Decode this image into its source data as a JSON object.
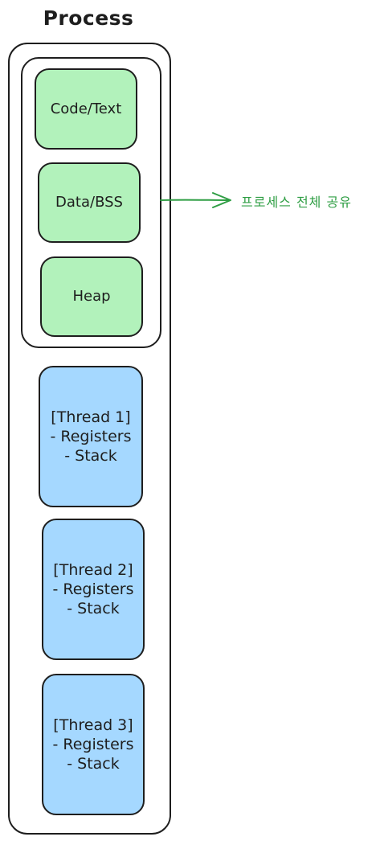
{
  "title": "Process",
  "shared_segments": [
    {
      "label": "Code/Text"
    },
    {
      "label": "Data/BSS"
    },
    {
      "label": "Heap"
    }
  ],
  "threads": [
    {
      "label": "[Thread 1]\n- Registers\n- Stack"
    },
    {
      "label": "[Thread 2]\n- Registers\n- Stack"
    },
    {
      "label": "[Thread 3]\n- Registers\n- Stack"
    }
  ],
  "annotation": "프로세스 전체 공유",
  "colors": {
    "shared_fill": "#b2f2bb",
    "thread_fill": "#a5d8ff",
    "annotation": "#2f9e44",
    "stroke": "#1e1e1e"
  }
}
